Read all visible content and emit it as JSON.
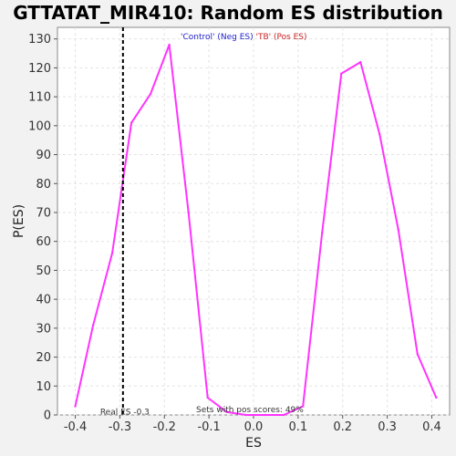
{
  "chart_data": {
    "type": "line",
    "title": "GTTATAT_MIR410: Random ES distribution",
    "xlabel": "ES",
    "ylabel": "P(ES)",
    "xlim": [
      -0.44,
      0.44
    ],
    "ylim": [
      0,
      134
    ],
    "x_ticks": [
      "-0.4",
      "-0.3",
      "-0.2",
      "-0.1",
      "0.0",
      "0.1",
      "0.2",
      "0.3",
      "0.4"
    ],
    "x_tick_values": [
      -0.4,
      -0.3,
      -0.2,
      -0.1,
      0.0,
      0.1,
      0.2,
      0.3,
      0.4
    ],
    "y_ticks": [
      "0",
      "10",
      "20",
      "30",
      "40",
      "50",
      "60",
      "70",
      "80",
      "90",
      "100",
      "110",
      "120",
      "130"
    ],
    "y_tick_values": [
      0,
      10,
      20,
      30,
      40,
      50,
      60,
      70,
      80,
      90,
      100,
      110,
      120,
      130
    ],
    "grid": true,
    "series": [
      {
        "color": "#ff33ff",
        "x": [
          -0.4,
          -0.36,
          -0.317,
          -0.274,
          -0.231,
          -0.189,
          -0.146,
          -0.103,
          -0.06,
          -0.017,
          0.026,
          0.068,
          0.111,
          0.154,
          0.197,
          0.24,
          0.283,
          0.325,
          0.368,
          0.41
        ],
        "y": [
          3,
          31,
          56,
          101,
          111,
          128,
          70,
          6,
          1,
          0,
          0,
          0,
          3,
          63,
          118,
          122,
          97,
          64,
          21,
          6
        ]
      }
    ],
    "legend": [
      {
        "label": "'Control' (Neg ES)",
        "color": "#2222cc"
      },
      {
        "label": "'TB' (Pos ES)",
        "color": "#cc2222"
      }
    ],
    "legend_placement": "top-center",
    "real_es": {
      "value": -0.293,
      "label": "Real ES -0.3"
    },
    "pos_scores_text": "Sets with pos scores: 49%"
  }
}
